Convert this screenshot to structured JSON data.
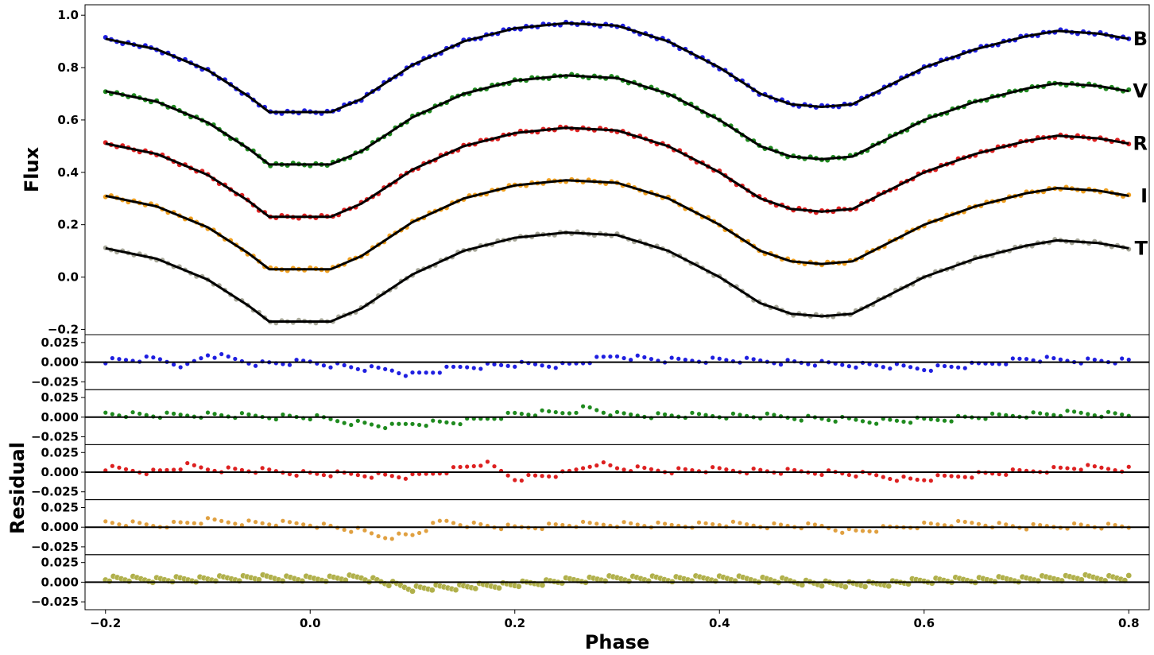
{
  "chart_data": {
    "type": "scatter",
    "xlabel": "Phase",
    "main_panel": {
      "ylabel": "Flux",
      "xlim": [
        -0.22,
        0.82
      ],
      "ylim": [
        -0.22,
        1.04
      ],
      "yticks": [
        -0.2,
        0.0,
        0.2,
        0.4,
        0.6,
        0.8,
        1.0
      ],
      "ytick_labels": [
        "−0.2",
        "0.0",
        "0.2",
        "0.4",
        "0.6",
        "0.8",
        "1.0"
      ],
      "xticks": [
        -0.2,
        0.0,
        0.2,
        0.4,
        0.6,
        0.8
      ],
      "xtick_labels": [
        "−0.2",
        "0.0",
        "0.2",
        "0.4",
        "0.6",
        "0.8"
      ],
      "model_color": "#000000",
      "series": [
        {
          "label": "B",
          "color": "#1f1fe0",
          "points": [
            [
              -0.2,
              0.91
            ],
            [
              -0.15,
              0.87
            ],
            [
              -0.1,
              0.79
            ],
            [
              -0.06,
              0.69
            ],
            [
              -0.04,
              0.63
            ],
            [
              0.0,
              0.63
            ],
            [
              0.02,
              0.63
            ],
            [
              0.05,
              0.68
            ],
            [
              0.1,
              0.81
            ],
            [
              0.15,
              0.9
            ],
            [
              0.2,
              0.95
            ],
            [
              0.25,
              0.97
            ],
            [
              0.3,
              0.96
            ],
            [
              0.35,
              0.9
            ],
            [
              0.4,
              0.8
            ],
            [
              0.44,
              0.7
            ],
            [
              0.47,
              0.66
            ],
            [
              0.5,
              0.65
            ],
            [
              0.53,
              0.66
            ],
            [
              0.56,
              0.72
            ],
            [
              0.6,
              0.8
            ],
            [
              0.65,
              0.87
            ],
            [
              0.7,
              0.92
            ],
            [
              0.73,
              0.94
            ],
            [
              0.77,
              0.93
            ],
            [
              0.8,
              0.91
            ]
          ]
        },
        {
          "label": "V",
          "color": "#1e8a1e",
          "points": [
            [
              -0.2,
              0.71
            ],
            [
              -0.15,
              0.67
            ],
            [
              -0.1,
              0.59
            ],
            [
              -0.06,
              0.49
            ],
            [
              -0.04,
              0.43
            ],
            [
              0.0,
              0.43
            ],
            [
              0.02,
              0.43
            ],
            [
              0.05,
              0.48
            ],
            [
              0.1,
              0.61
            ],
            [
              0.15,
              0.7
            ],
            [
              0.2,
              0.75
            ],
            [
              0.25,
              0.77
            ],
            [
              0.3,
              0.76
            ],
            [
              0.35,
              0.7
            ],
            [
              0.4,
              0.6
            ],
            [
              0.44,
              0.5
            ],
            [
              0.47,
              0.46
            ],
            [
              0.5,
              0.45
            ],
            [
              0.53,
              0.46
            ],
            [
              0.56,
              0.52
            ],
            [
              0.6,
              0.6
            ],
            [
              0.65,
              0.67
            ],
            [
              0.7,
              0.72
            ],
            [
              0.73,
              0.74
            ],
            [
              0.77,
              0.73
            ],
            [
              0.8,
              0.71
            ]
          ]
        },
        {
          "label": "R",
          "color": "#dd2020",
          "points": [
            [
              -0.2,
              0.51
            ],
            [
              -0.15,
              0.47
            ],
            [
              -0.1,
              0.39
            ],
            [
              -0.06,
              0.29
            ],
            [
              -0.04,
              0.23
            ],
            [
              0.0,
              0.23
            ],
            [
              0.02,
              0.23
            ],
            [
              0.05,
              0.28
            ],
            [
              0.1,
              0.41
            ],
            [
              0.15,
              0.5
            ],
            [
              0.2,
              0.55
            ],
            [
              0.25,
              0.57
            ],
            [
              0.3,
              0.56
            ],
            [
              0.35,
              0.5
            ],
            [
              0.4,
              0.4
            ],
            [
              0.44,
              0.3
            ],
            [
              0.47,
              0.26
            ],
            [
              0.5,
              0.25
            ],
            [
              0.53,
              0.26
            ],
            [
              0.56,
              0.32
            ],
            [
              0.6,
              0.4
            ],
            [
              0.65,
              0.47
            ],
            [
              0.7,
              0.52
            ],
            [
              0.73,
              0.54
            ],
            [
              0.77,
              0.53
            ],
            [
              0.8,
              0.51
            ]
          ]
        },
        {
          "label": "I",
          "color": "#f0a020",
          "points": [
            [
              -0.2,
              0.31
            ],
            [
              -0.15,
              0.27
            ],
            [
              -0.1,
              0.19
            ],
            [
              -0.06,
              0.09
            ],
            [
              -0.04,
              0.03
            ],
            [
              0.0,
              0.03
            ],
            [
              0.02,
              0.03
            ],
            [
              0.05,
              0.08
            ],
            [
              0.1,
              0.21
            ],
            [
              0.15,
              0.3
            ],
            [
              0.2,
              0.35
            ],
            [
              0.25,
              0.37
            ],
            [
              0.3,
              0.36
            ],
            [
              0.35,
              0.3
            ],
            [
              0.4,
              0.2
            ],
            [
              0.44,
              0.1
            ],
            [
              0.47,
              0.06
            ],
            [
              0.5,
              0.05
            ],
            [
              0.53,
              0.06
            ],
            [
              0.56,
              0.12
            ],
            [
              0.6,
              0.2
            ],
            [
              0.65,
              0.27
            ],
            [
              0.7,
              0.32
            ],
            [
              0.73,
              0.34
            ],
            [
              0.77,
              0.33
            ],
            [
              0.8,
              0.31
            ]
          ]
        },
        {
          "label": "T",
          "color": "#a8a89a",
          "points": [
            [
              -0.2,
              0.11
            ],
            [
              -0.15,
              0.07
            ],
            [
              -0.1,
              -0.01
            ],
            [
              -0.06,
              -0.11
            ],
            [
              -0.04,
              -0.17
            ],
            [
              0.0,
              -0.17
            ],
            [
              0.02,
              -0.17
            ],
            [
              0.05,
              -0.12
            ],
            [
              0.1,
              0.01
            ],
            [
              0.15,
              0.1
            ],
            [
              0.2,
              0.15
            ],
            [
              0.25,
              0.17
            ],
            [
              0.3,
              0.16
            ],
            [
              0.35,
              0.1
            ],
            [
              0.4,
              0.0
            ],
            [
              0.44,
              -0.1
            ],
            [
              0.47,
              -0.14
            ],
            [
              0.5,
              -0.15
            ],
            [
              0.53,
              -0.14
            ],
            [
              0.56,
              -0.08
            ],
            [
              0.6,
              0.0
            ],
            [
              0.65,
              0.07
            ],
            [
              0.7,
              0.12
            ],
            [
              0.73,
              0.14
            ],
            [
              0.77,
              0.13
            ],
            [
              0.8,
              0.11
            ]
          ]
        }
      ]
    },
    "residual_panels": {
      "ylabel": "Residual",
      "ylim": [
        -0.035,
        0.035
      ],
      "yticks": [
        -0.025,
        0.0,
        0.025
      ],
      "ytick_labels": [
        "−0.025",
        "0.000",
        "0.025"
      ],
      "panels": [
        {
          "band": "B",
          "color": "#1f1fe0",
          "points": [
            [
              -0.2,
              0.002
            ],
            [
              -0.15,
              0.004
            ],
            [
              -0.12,
              -0.005
            ],
            [
              -0.1,
              0.01
            ],
            [
              -0.08,
              0.005
            ],
            [
              -0.05,
              -0.002
            ],
            [
              0.0,
              0.0
            ],
            [
              0.05,
              -0.008
            ],
            [
              0.08,
              -0.01
            ],
            [
              0.1,
              -0.016
            ],
            [
              0.15,
              -0.006
            ],
            [
              0.2,
              -0.003
            ],
            [
              0.25,
              -0.004
            ],
            [
              0.3,
              0.008
            ],
            [
              0.35,
              0.002
            ],
            [
              0.4,
              0.003
            ],
            [
              0.45,
              0.001
            ],
            [
              0.5,
              -0.002
            ],
            [
              0.55,
              -0.004
            ],
            [
              0.6,
              -0.008
            ],
            [
              0.65,
              -0.004
            ],
            [
              0.7,
              0.004
            ],
            [
              0.75,
              0.002
            ],
            [
              0.8,
              0.001
            ]
          ]
        },
        {
          "band": "V",
          "color": "#1e8a1e",
          "points": [
            [
              -0.2,
              0.005
            ],
            [
              -0.15,
              0.002
            ],
            [
              -0.1,
              0.003
            ],
            [
              -0.05,
              0.001
            ],
            [
              0.0,
              0.0
            ],
            [
              0.05,
              -0.008
            ],
            [
              0.08,
              -0.012
            ],
            [
              0.1,
              -0.008
            ],
            [
              0.15,
              -0.006
            ],
            [
              0.2,
              0.004
            ],
            [
              0.25,
              0.006
            ],
            [
              0.27,
              0.012
            ],
            [
              0.3,
              0.003
            ],
            [
              0.35,
              0.002
            ],
            [
              0.4,
              0.002
            ],
            [
              0.45,
              0.001
            ],
            [
              0.5,
              -0.002
            ],
            [
              0.55,
              -0.005
            ],
            [
              0.6,
              -0.004
            ],
            [
              0.65,
              0.0
            ],
            [
              0.7,
              0.003
            ],
            [
              0.75,
              0.005
            ],
            [
              0.8,
              0.003
            ]
          ]
        },
        {
          "band": "R",
          "color": "#dd2020",
          "points": [
            [
              -0.2,
              0.005
            ],
            [
              -0.15,
              0.0
            ],
            [
              -0.12,
              0.008
            ],
            [
              -0.1,
              0.004
            ],
            [
              -0.05,
              0.002
            ],
            [
              0.0,
              -0.002
            ],
            [
              0.05,
              -0.003
            ],
            [
              0.1,
              -0.006
            ],
            [
              0.15,
              0.006
            ],
            [
              0.17,
              0.012
            ],
            [
              0.2,
              -0.008
            ],
            [
              0.25,
              -0.002
            ],
            [
              0.28,
              0.012
            ],
            [
              0.3,
              0.005
            ],
            [
              0.35,
              0.002
            ],
            [
              0.4,
              0.003
            ],
            [
              0.45,
              0.001
            ],
            [
              0.5,
              0.0
            ],
            [
              0.55,
              -0.004
            ],
            [
              0.59,
              -0.01
            ],
            [
              0.65,
              -0.003
            ],
            [
              0.7,
              0.001
            ],
            [
              0.75,
              0.006
            ],
            [
              0.8,
              0.004
            ]
          ]
        },
        {
          "band": "I",
          "color": "#e0a040",
          "points": [
            [
              -0.2,
              0.006
            ],
            [
              -0.15,
              0.002
            ],
            [
              -0.1,
              0.008
            ],
            [
              -0.05,
              0.005
            ],
            [
              0.0,
              0.004
            ],
            [
              0.05,
              -0.005
            ],
            [
              0.07,
              -0.012
            ],
            [
              0.1,
              -0.01
            ],
            [
              0.13,
              0.008
            ],
            [
              0.15,
              0.004
            ],
            [
              0.2,
              -0.001
            ],
            [
              0.25,
              0.003
            ],
            [
              0.3,
              0.004
            ],
            [
              0.35,
              0.002
            ],
            [
              0.4,
              0.004
            ],
            [
              0.45,
              0.002
            ],
            [
              0.5,
              0.001
            ],
            [
              0.53,
              -0.006
            ],
            [
              0.6,
              0.003
            ],
            [
              0.65,
              0.005
            ],
            [
              0.7,
              0.0
            ],
            [
              0.75,
              0.002
            ],
            [
              0.8,
              0.0
            ]
          ]
        },
        {
          "band": "T",
          "color": "#b0b04a",
          "points": [
            [
              -0.2,
              0.005
            ],
            [
              -0.15,
              0.003
            ],
            [
              -0.1,
              0.004
            ],
            [
              -0.05,
              0.006
            ],
            [
              0.0,
              0.004
            ],
            [
              0.05,
              0.006
            ],
            [
              0.1,
              -0.008
            ],
            [
              0.15,
              -0.006
            ],
            [
              0.2,
              -0.003
            ],
            [
              0.25,
              0.002
            ],
            [
              0.3,
              0.005
            ],
            [
              0.35,
              0.004
            ],
            [
              0.4,
              0.005
            ],
            [
              0.45,
              0.003
            ],
            [
              0.5,
              -0.002
            ],
            [
              0.55,
              -0.003
            ],
            [
              0.6,
              0.002
            ],
            [
              0.65,
              0.003
            ],
            [
              0.7,
              0.004
            ],
            [
              0.75,
              0.006
            ],
            [
              0.8,
              0.005
            ]
          ]
        }
      ]
    }
  }
}
